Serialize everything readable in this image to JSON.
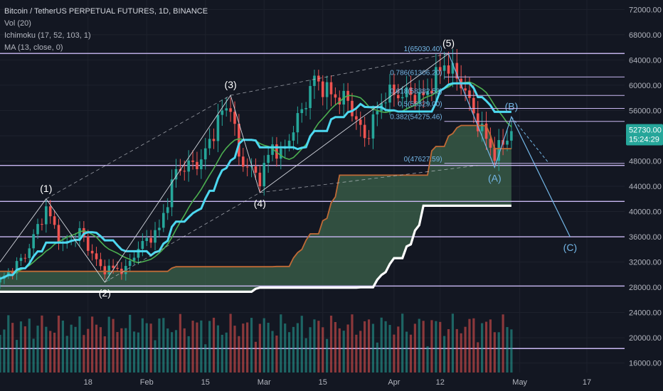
{
  "legend": {
    "title": "Bitcoin / TetherUS PERPETUAL FUTURES, 1D, BINANCE",
    "vol": "Vol (20)",
    "ichimoku": "Ichimoku (17, 52, 103, 1)",
    "ma": "MA (13, close, 0)"
  },
  "colors": {
    "background": "#131722",
    "grid": "#1e222d",
    "axis_text": "#b2b5be",
    "candle_up": "#26a69a",
    "candle_down": "#ef5350",
    "hline": "#c9b8f2",
    "kijun": "#4dd8f0",
    "ma13": "#4caf50",
    "span_a": "#c06a36",
    "span_b": "#ffffff",
    "cloud": "#4b7d5a",
    "wave_label": "#ffffff",
    "wave_abc": "#73b6e6",
    "fib": "#73b6e6",
    "last_price_bg": "#26a69a"
  },
  "chart_data": {
    "type": "candlestick",
    "x_range": [
      "2020-12-28",
      "2021-05-26"
    ],
    "y_range": [
      14500,
      73500
    ],
    "y_ticks": [
      "72000.00",
      "68000.00",
      "64000.00",
      "60000.00",
      "56000.00",
      "52000.00",
      "48000.00",
      "44000.00",
      "40000.00",
      "36000.00",
      "32000.00",
      "28000.00",
      "24000.00",
      "20000.00",
      "16000.00"
    ],
    "y_tick_values": [
      72000,
      68000,
      64000,
      60000,
      56000,
      52000,
      48000,
      44000,
      40000,
      36000,
      32000,
      28000,
      24000,
      20000,
      16000
    ],
    "x_ticks": [
      {
        "label": "18",
        "date": "2021-01-18"
      },
      {
        "label": "Feb",
        "date": "2021-02-01"
      },
      {
        "label": "15",
        "date": "2021-02-15"
      },
      {
        "label": "Mar",
        "date": "2021-03-01"
      },
      {
        "label": "15",
        "date": "2021-03-15"
      },
      {
        "label": "Apr",
        "date": "2021-04-01"
      },
      {
        "label": "12",
        "date": "2021-04-12"
      },
      {
        "label": "May",
        "date": "2021-05-01"
      },
      {
        "label": "17",
        "date": "2021-05-17"
      }
    ],
    "last_price": {
      "value": "52730.00",
      "countdown": "15:24:29"
    },
    "horizontal_levels": [
      65030,
      47300,
      41600,
      36000,
      28200,
      18300
    ],
    "fib_levels": [
      {
        "label": "1(65030.40)",
        "value": 65030.4
      },
      {
        "label": "0.786(61306.20)",
        "value": 61306.2
      },
      {
        "label": "0.618(58382.53)",
        "value": 58382.53
      },
      {
        "label": "0.5(56329.00)",
        "value": 56329.0
      },
      {
        "label": "0.382(54275.46)",
        "value": 54275.46
      },
      {
        "label": "0(47627.59)",
        "value": 47627.59
      }
    ],
    "waves": [
      {
        "label": "(1)",
        "date": "2021-01-08",
        "value": 42000
      },
      {
        "label": "(2)",
        "date": "2021-01-22",
        "value": 28800
      },
      {
        "label": "(3)",
        "date": "2021-02-21",
        "value": 58400
      },
      {
        "label": "(4)",
        "date": "2021-02-28",
        "value": 43000
      },
      {
        "label": "(5)",
        "date": "2021-04-14",
        "value": 65000
      },
      {
        "label": "(A)",
        "date": "2021-04-25",
        "value": 47000
      },
      {
        "label": "(B)",
        "date": "2021-04-29",
        "value": 55000
      },
      {
        "label": "(C)",
        "date": "2021-05-13",
        "value": 36000
      }
    ],
    "wave_path_main": [
      {
        "date": "2020-12-28",
        "value": 32000
      },
      {
        "date": "2021-01-08",
        "value": 42000
      },
      {
        "date": "2021-01-22",
        "value": 28800
      },
      {
        "date": "2021-02-21",
        "value": 58400
      },
      {
        "date": "2021-02-28",
        "value": 43000
      },
      {
        "date": "2021-04-14",
        "value": 65000
      }
    ],
    "wave_path_abc": [
      {
        "date": "2021-04-14",
        "value": 65000
      },
      {
        "date": "2021-04-25",
        "value": 47000
      },
      {
        "date": "2021-04-29",
        "value": 55000
      },
      {
        "date": "2021-05-13",
        "value": 36000
      }
    ],
    "wave_projection": [
      {
        "date": "2021-04-29",
        "value": 55000
      },
      {
        "date": "2021-05-08",
        "value": 47600
      }
    ],
    "channel_lines": [
      [
        {
          "date": "2021-01-22",
          "value": 28800
        },
        {
          "date": "2021-02-28",
          "value": 43000
        },
        {
          "date": "2021-04-21",
          "value": 47300
        }
      ],
      [
        {
          "date": "2021-01-08",
          "value": 42000
        },
        {
          "date": "2021-02-21",
          "value": 58400
        },
        {
          "date": "2021-04-14",
          "value": 65000
        }
      ]
    ],
    "ohlc_anchors": [
      {
        "date": "2020-12-28",
        "value": 29000
      },
      {
        "date": "2021-01-03",
        "value": 33000
      },
      {
        "date": "2021-01-08",
        "value": 40500
      },
      {
        "date": "2021-01-12",
        "value": 34500
      },
      {
        "date": "2021-01-16",
        "value": 36800
      },
      {
        "date": "2021-01-21",
        "value": 31000
      },
      {
        "date": "2021-01-27",
        "value": 30800
      },
      {
        "date": "2021-01-30",
        "value": 34300
      },
      {
        "date": "2021-02-04",
        "value": 37200
      },
      {
        "date": "2021-02-08",
        "value": 46500
      },
      {
        "date": "2021-02-14",
        "value": 48000
      },
      {
        "date": "2021-02-19",
        "value": 55800
      },
      {
        "date": "2021-02-21",
        "value": 57000
      },
      {
        "date": "2021-02-23",
        "value": 48500
      },
      {
        "date": "2021-02-28",
        "value": 45200
      },
      {
        "date": "2021-03-03",
        "value": 50500
      },
      {
        "date": "2021-03-05",
        "value": 48800
      },
      {
        "date": "2021-03-10",
        "value": 56000
      },
      {
        "date": "2021-03-13",
        "value": 61000
      },
      {
        "date": "2021-03-17",
        "value": 58500
      },
      {
        "date": "2021-03-21",
        "value": 57500
      },
      {
        "date": "2021-03-25",
        "value": 51500
      },
      {
        "date": "2021-03-30",
        "value": 58600
      },
      {
        "date": "2021-04-05",
        "value": 58500
      },
      {
        "date": "2021-04-08",
        "value": 58000
      },
      {
        "date": "2021-04-13",
        "value": 63500
      },
      {
        "date": "2021-04-17",
        "value": 60500
      },
      {
        "date": "2021-04-21",
        "value": 54000
      },
      {
        "date": "2021-04-25",
        "value": 49000
      },
      {
        "date": "2021-04-29",
        "value": 52730
      }
    ]
  }
}
